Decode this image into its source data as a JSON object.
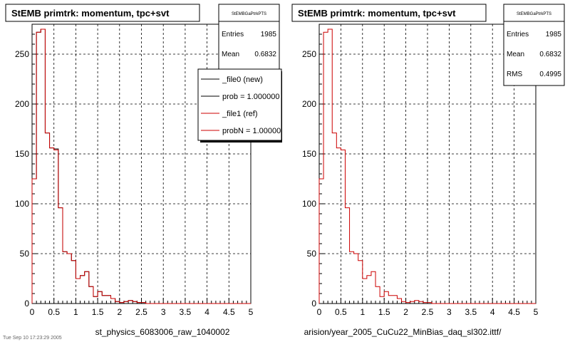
{
  "colors": {
    "new": "#000000",
    "ref": "#cc0000"
  },
  "chart_data": [
    {
      "type": "histogram",
      "title": "StEMB primtrk: momentum, tpc+svt",
      "xlim": [
        0,
        5
      ],
      "ylim": [
        0,
        280
      ],
      "grid": true,
      "xticks": [
        "0",
        "0.5",
        "1",
        "1.5",
        "2",
        "2.5",
        "3",
        "3.5",
        "4",
        "4.5",
        "5"
      ],
      "yticks": [
        "0",
        "50",
        "100",
        "150",
        "200",
        "250"
      ],
      "bin_width": 0.1,
      "series": [
        {
          "name": "_file0 (new)",
          "color": "#000000",
          "values": [
            125,
            272,
            275,
            171,
            156,
            155,
            96,
            52,
            50,
            43,
            25,
            28,
            32,
            17,
            7,
            12,
            8,
            8,
            5,
            2,
            1,
            2,
            3,
            2,
            1,
            1,
            0,
            0,
            0,
            0,
            0,
            0,
            0,
            0,
            0,
            0,
            0,
            0,
            0,
            0,
            0,
            0,
            0,
            0,
            0,
            0,
            0,
            0,
            0,
            0
          ]
        },
        {
          "name": "_file1 (ref)",
          "color": "#cc0000",
          "values": [
            125,
            272,
            275,
            171,
            156,
            154,
            96,
            52,
            50,
            43,
            25,
            28,
            32,
            17,
            7,
            12,
            8,
            8,
            5,
            2,
            1,
            2,
            3,
            2,
            1,
            1,
            0,
            0,
            0,
            0,
            0,
            0,
            0,
            0,
            0,
            0,
            0,
            0,
            0,
            0,
            0,
            0,
            0,
            0,
            0,
            0,
            0,
            0,
            0,
            0
          ]
        }
      ],
      "stats": {
        "name": "StEMBGaPtrkPTS",
        "entries_label": "Entries",
        "entries": "1985",
        "mean_label": "Mean",
        "mean": "0.6832"
      },
      "legend": {
        "placement": "top-right",
        "entries": [
          "_file0 (new)",
          "prob = 1.000000",
          "_file1 (ref)",
          "probN = 1.000000"
        ]
      },
      "footer": "st_physics_6083006_raw_1040002"
    },
    {
      "type": "histogram",
      "title": "StEMB primtrk: momentum, tpc+svt",
      "xlim": [
        0,
        5
      ],
      "ylim": [
        0,
        280
      ],
      "grid": true,
      "xticks": [
        "0",
        "0.5",
        "1",
        "1.5",
        "2",
        "2.5",
        "3",
        "3.5",
        "4",
        "4.5",
        "5"
      ],
      "yticks": [
        "0",
        "50",
        "100",
        "150",
        "200",
        "250"
      ],
      "bin_width": 0.1,
      "series": [
        {
          "name": "_file1 (ref)",
          "color": "#cc0000",
          "values": [
            125,
            272,
            275,
            171,
            156,
            154,
            96,
            52,
            50,
            43,
            25,
            28,
            32,
            17,
            7,
            12,
            8,
            8,
            5,
            2,
            1,
            2,
            3,
            2,
            1,
            1,
            0,
            0,
            0,
            0,
            0,
            0,
            0,
            0,
            0,
            0,
            0,
            0,
            0,
            0,
            0,
            0,
            0,
            0,
            0,
            0,
            0,
            0,
            0,
            0
          ]
        }
      ],
      "stats": {
        "name": "StEMBGaPtrkPTS",
        "entries_label": "Entries",
        "entries": "1985",
        "mean_label": "Mean",
        "mean": "0.6832",
        "rms_label": "RMS",
        "rms": "0.4995"
      },
      "footer": "arision/year_2005_CuCu22_MinBias_daq_sl302.ittf/"
    }
  ],
  "corner_text": "Tue Sep 10 17:23:29 2005"
}
